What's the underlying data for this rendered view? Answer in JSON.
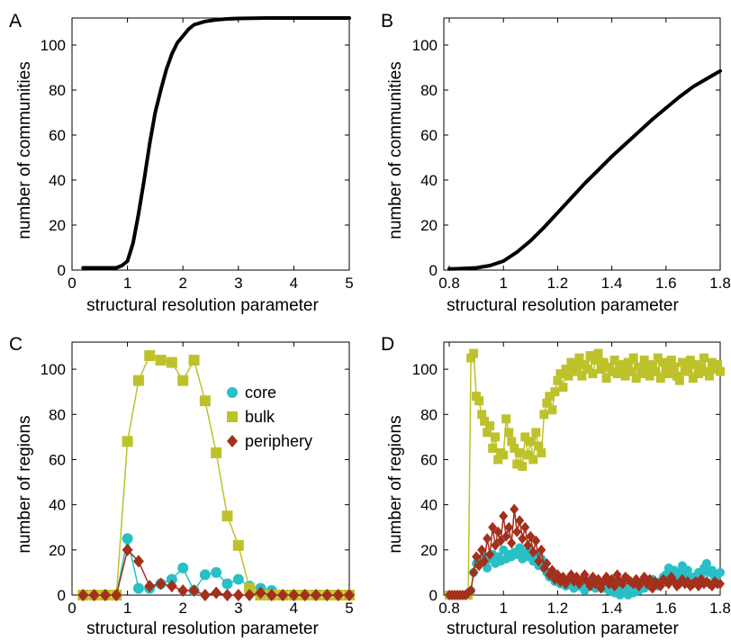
{
  "colors": {
    "core": "#29BFC7",
    "bulk": "#BEC22A",
    "periphery": "#A3301C",
    "line": "#000000"
  },
  "chart_data": [
    {
      "panel": "A",
      "type": "line",
      "xlabel": "structural resolution parameter",
      "ylabel": "number of communities",
      "xlim": [
        0,
        5
      ],
      "ylim": [
        0,
        112
      ],
      "xticks": [
        0,
        1,
        2,
        3,
        4,
        5
      ],
      "yticks": [
        0,
        20,
        40,
        60,
        80,
        100
      ],
      "series": [
        {
          "x": [
            0.2,
            0.4,
            0.6,
            0.8,
            0.9,
            1.0,
            1.1,
            1.2,
            1.3,
            1.4,
            1.5,
            1.6,
            1.7,
            1.8,
            1.9,
            2.0,
            2.1,
            2.2,
            2.4,
            2.6,
            2.8,
            3.0,
            3.5,
            4.0,
            4.5,
            5.0
          ],
          "y": [
            1,
            1,
            1,
            1,
            2,
            4,
            12,
            25,
            40,
            56,
            70,
            80,
            89,
            96,
            101,
            104,
            107,
            109,
            110.5,
            111.2,
            111.6,
            111.8,
            112,
            112,
            112,
            112
          ]
        }
      ]
    },
    {
      "panel": "B",
      "type": "line",
      "xlabel": "structural resolution parameter",
      "ylabel": "number of communities",
      "xlim": [
        0.78,
        1.8
      ],
      "ylim": [
        0,
        112
      ],
      "xticks": [
        0.8,
        1,
        1.2,
        1.4,
        1.6,
        1.8
      ],
      "yticks": [
        0,
        20,
        40,
        60,
        80,
        100
      ],
      "series": [
        {
          "x": [
            0.8,
            0.85,
            0.9,
            0.95,
            1.0,
            1.05,
            1.1,
            1.15,
            1.2,
            1.25,
            1.3,
            1.35,
            1.4,
            1.45,
            1.5,
            1.55,
            1.6,
            1.65,
            1.7,
            1.75,
            1.8
          ],
          "y": [
            0.5,
            0.7,
            1,
            2,
            4,
            8,
            13,
            19,
            25.5,
            32,
            38.5,
            44.5,
            50.5,
            56,
            61.5,
            67,
            72,
            77,
            81.5,
            85,
            88.5
          ]
        }
      ]
    },
    {
      "panel": "C",
      "type": "line",
      "xlabel": "structural resolution parameter",
      "ylabel": "number of regions",
      "xlim": [
        0,
        5
      ],
      "ylim": [
        0,
        112
      ],
      "xticks": [
        0,
        1,
        2,
        3,
        4,
        5
      ],
      "yticks": [
        0,
        20,
        40,
        60,
        80,
        100
      ],
      "legend": {
        "placement": "top-right",
        "entries": [
          "core",
          "bulk",
          "periphery"
        ]
      },
      "x": [
        0.2,
        0.4,
        0.6,
        0.8,
        1.0,
        1.2,
        1.4,
        1.6,
        1.8,
        2.0,
        2.2,
        2.4,
        2.6,
        2.8,
        3.0,
        3.2,
        3.4,
        3.6,
        3.8,
        4.0,
        4.2,
        4.4,
        4.6,
        4.8,
        5.0
      ],
      "series": [
        {
          "name": "core",
          "marker": "circle",
          "values": [
            0,
            0,
            0,
            0,
            25,
            3,
            3,
            5,
            7,
            12,
            2,
            9,
            10,
            5,
            7,
            4,
            3,
            2,
            0,
            0,
            0,
            0,
            0,
            0,
            0
          ]
        },
        {
          "name": "bulk",
          "marker": "square",
          "values": [
            0,
            0,
            0,
            0,
            68,
            95,
            106,
            104,
            103,
            95,
            104,
            86,
            63,
            35,
            22,
            3,
            0,
            0,
            0,
            0,
            0,
            0,
            0,
            0,
            0
          ]
        },
        {
          "name": "periphery",
          "marker": "diamond",
          "values": [
            0,
            0,
            0,
            0,
            20,
            15,
            4,
            5,
            4,
            2,
            2,
            0,
            1,
            0,
            0,
            0,
            1,
            0,
            0,
            0,
            0,
            0,
            0,
            0,
            0
          ]
        }
      ]
    },
    {
      "panel": "D",
      "type": "line",
      "xlabel": "structural resolution parameter",
      "ylabel": "number of regions",
      "xlim": [
        0.78,
        1.8
      ],
      "ylim": [
        0,
        112
      ],
      "xticks": [
        0.8,
        1,
        1.2,
        1.4,
        1.6,
        1.8
      ],
      "yticks": [
        0,
        20,
        40,
        60,
        80,
        100
      ],
      "x": [
        0.8,
        0.81,
        0.82,
        0.83,
        0.84,
        0.85,
        0.86,
        0.87,
        0.88,
        0.89,
        0.9,
        0.91,
        0.92,
        0.93,
        0.94,
        0.95,
        0.96,
        0.97,
        0.98,
        0.99,
        1.0,
        1.01,
        1.02,
        1.03,
        1.04,
        1.05,
        1.06,
        1.07,
        1.08,
        1.09,
        1.1,
        1.11,
        1.12,
        1.13,
        1.14,
        1.15,
        1.16,
        1.17,
        1.18,
        1.19,
        1.2,
        1.21,
        1.22,
        1.23,
        1.24,
        1.25,
        1.26,
        1.27,
        1.28,
        1.29,
        1.3,
        1.31,
        1.32,
        1.33,
        1.34,
        1.35,
        1.36,
        1.37,
        1.38,
        1.39,
        1.4,
        1.41,
        1.42,
        1.43,
        1.44,
        1.45,
        1.46,
        1.47,
        1.48,
        1.49,
        1.5,
        1.51,
        1.52,
        1.53,
        1.54,
        1.55,
        1.56,
        1.57,
        1.58,
        1.59,
        1.6,
        1.61,
        1.62,
        1.63,
        1.64,
        1.65,
        1.66,
        1.67,
        1.68,
        1.69,
        1.7,
        1.71,
        1.72,
        1.73,
        1.74,
        1.75,
        1.76,
        1.77,
        1.78,
        1.79,
        1.8
      ],
      "series": [
        {
          "name": "core",
          "marker": "circle",
          "values": [
            0,
            0,
            0,
            0,
            0,
            0,
            0,
            1,
            2,
            10,
            14,
            16,
            15,
            17,
            12,
            16,
            18,
            14,
            17,
            15,
            20,
            16,
            18,
            17,
            19,
            18,
            21,
            16,
            19,
            17,
            20,
            15,
            18,
            13,
            16,
            12,
            10,
            8,
            9,
            6,
            7,
            5,
            6,
            4,
            6,
            5,
            3,
            6,
            4,
            5,
            2,
            6,
            4,
            5,
            3,
            5,
            4,
            3,
            5,
            2,
            3,
            1,
            4,
            0,
            3,
            2,
            0,
            4,
            1,
            3,
            2,
            5,
            3,
            6,
            4,
            7,
            5,
            4,
            6,
            8,
            9,
            12,
            10,
            11,
            8,
            10,
            13,
            9,
            11,
            7,
            8,
            6,
            10,
            9,
            12,
            14,
            10,
            11,
            8,
            9,
            10
          ]
        },
        {
          "name": "bulk",
          "marker": "square",
          "values": [
            0,
            0,
            0,
            0,
            0,
            0,
            0,
            0,
            105,
            107,
            88,
            86,
            80,
            77,
            72,
            75,
            65,
            70,
            60,
            63,
            62,
            78,
            72,
            68,
            65,
            58,
            63,
            57,
            70,
            62,
            68,
            60,
            72,
            66,
            63,
            80,
            85,
            88,
            82,
            90,
            95,
            98,
            92,
            100,
            97,
            103,
            99,
            101,
            105,
            97,
            102,
            100,
            106,
            98,
            104,
            107,
            100,
            103,
            96,
            101,
            99,
            104,
            98,
            102,
            100,
            97,
            103,
            99,
            105,
            96,
            101,
            98,
            104,
            100,
            97,
            102,
            99,
            105,
            96,
            103,
            100,
            98,
            104,
            101,
            97,
            95,
            103,
            99,
            100,
            104,
            96,
            102,
            98,
            101,
            105,
            99,
            97,
            103,
            100,
            102,
            99
          ]
        },
        {
          "name": "periphery",
          "marker": "diamond",
          "values": [
            0,
            0,
            0,
            0,
            0,
            0,
            0,
            1,
            2,
            10,
            17,
            13,
            20,
            15,
            25,
            18,
            30,
            22,
            28,
            24,
            35,
            26,
            30,
            23,
            38,
            28,
            33,
            25,
            30,
            22,
            26,
            19,
            24,
            15,
            20,
            12,
            14,
            9,
            11,
            7,
            9,
            6,
            8,
            5,
            7,
            9,
            6,
            8,
            5,
            7,
            9,
            6,
            4,
            8,
            5,
            7,
            3,
            6,
            8,
            5,
            7,
            4,
            9,
            6,
            5,
            8,
            7,
            6,
            5,
            7,
            4,
            6,
            8,
            5,
            7,
            3,
            6,
            5,
            4,
            7,
            6,
            5,
            8,
            6,
            4,
            5,
            7,
            5,
            6,
            4,
            5,
            6,
            4,
            7,
            5,
            6,
            5,
            4,
            6,
            5,
            5
          ]
        }
      ]
    }
  ]
}
